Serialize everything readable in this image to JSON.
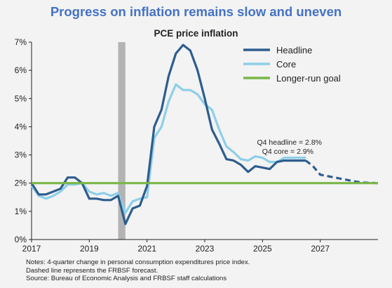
{
  "page_title": "Progress on inflation remains slow and uneven",
  "chart_data": {
    "type": "line",
    "title": "PCE price inflation",
    "xlabel": "",
    "ylabel": "",
    "xlim": [
      2017.0,
      2029.0
    ],
    "ylim": [
      0,
      7
    ],
    "x_ticks": [
      "2017",
      "2019",
      "2021",
      "2023",
      "2025",
      "2027"
    ],
    "x_tick_values": [
      2017,
      2019,
      2021,
      2023,
      2025,
      2027
    ],
    "y_ticks": [
      "0%",
      "1%",
      "2%",
      "3%",
      "4%",
      "5%",
      "6%",
      "7%"
    ],
    "y_tick_values": [
      0,
      1,
      2,
      3,
      4,
      5,
      6,
      7
    ],
    "shaded_period": [
      2020.0,
      2020.25
    ],
    "legend_position": "top-right",
    "series": [
      {
        "name": "Headline",
        "color": "#2e5d8e",
        "style": "solid",
        "x": [
          2017.0,
          2017.25,
          2017.5,
          2017.75,
          2018.0,
          2018.25,
          2018.5,
          2018.75,
          2019.0,
          2019.25,
          2019.5,
          2019.75,
          2020.0,
          2020.25,
          2020.5,
          2020.75,
          2021.0,
          2021.25,
          2021.5,
          2021.75,
          2022.0,
          2022.25,
          2022.5,
          2022.75,
          2023.0,
          2023.25,
          2023.5,
          2023.75,
          2024.0,
          2024.25,
          2024.5,
          2024.75,
          2025.0,
          2025.25,
          2025.5,
          2025.75,
          2026.0,
          2026.25,
          2026.5
        ],
        "values": [
          2.0,
          1.6,
          1.6,
          1.7,
          1.8,
          2.2,
          2.2,
          2.0,
          1.45,
          1.45,
          1.4,
          1.4,
          1.55,
          0.55,
          1.1,
          1.2,
          1.9,
          4.0,
          4.6,
          5.8,
          6.6,
          6.9,
          6.7,
          6.0,
          5.0,
          3.9,
          3.4,
          2.85,
          2.8,
          2.65,
          2.4,
          2.6,
          2.55,
          2.5,
          2.75,
          2.8,
          2.8,
          2.8,
          2.8
        ]
      },
      {
        "name": "Core",
        "color": "#8ecfe8",
        "style": "solid",
        "x": [
          2017.0,
          2017.25,
          2017.5,
          2017.75,
          2018.0,
          2018.25,
          2018.5,
          2018.75,
          2019.0,
          2019.25,
          2019.5,
          2019.75,
          2020.0,
          2020.25,
          2020.5,
          2020.75,
          2021.0,
          2021.25,
          2021.5,
          2021.75,
          2022.0,
          2022.25,
          2022.5,
          2022.75,
          2023.0,
          2023.25,
          2023.5,
          2023.75,
          2024.0,
          2024.25,
          2024.5,
          2024.75,
          2025.0,
          2025.25,
          2025.5,
          2025.75,
          2026.0,
          2026.25,
          2026.5
        ],
        "values": [
          1.9,
          1.55,
          1.45,
          1.55,
          1.7,
          1.95,
          1.95,
          2.0,
          1.7,
          1.6,
          1.65,
          1.55,
          1.65,
          0.95,
          1.35,
          1.45,
          1.5,
          3.6,
          4.0,
          4.9,
          5.5,
          5.3,
          5.3,
          5.15,
          4.8,
          4.6,
          3.9,
          3.3,
          3.1,
          2.85,
          2.8,
          2.95,
          2.9,
          2.75,
          2.75,
          2.9,
          2.9,
          2.9,
          2.9
        ]
      },
      {
        "name": "FRBSF forecast",
        "color": "#2e5d8e",
        "style": "dashed",
        "x": [
          2026.5,
          2026.75,
          2027.0,
          2027.25,
          2027.5,
          2027.75,
          2028.0,
          2028.25,
          2028.5,
          2028.75,
          2029.0
        ],
        "values": [
          2.8,
          2.6,
          2.3,
          2.25,
          2.2,
          2.15,
          2.1,
          2.05,
          2.02,
          2.01,
          2.0
        ]
      },
      {
        "name": "Longer-run goal",
        "color": "#7ab648",
        "style": "solid",
        "x": [
          2017.0,
          2029.0
        ],
        "values": [
          2.0,
          2.0
        ]
      }
    ],
    "legend": [
      {
        "label": "Headline",
        "color": "#2e5d8e"
      },
      {
        "label": "Core",
        "color": "#8ecfe8"
      },
      {
        "label": "Longer-run goal",
        "color": "#7ab648"
      }
    ],
    "annotations": [
      "Q4 headline = 2.8%",
      "Q4 core = 2.9%"
    ]
  },
  "notes": [
    "Notes: 4-quarter change in personal consumption expenditures price index.",
    "Dashed line represents the FRBSF forecast.",
    "Source: Bureau of Economic Analysis and FRBSF staff calculations"
  ]
}
